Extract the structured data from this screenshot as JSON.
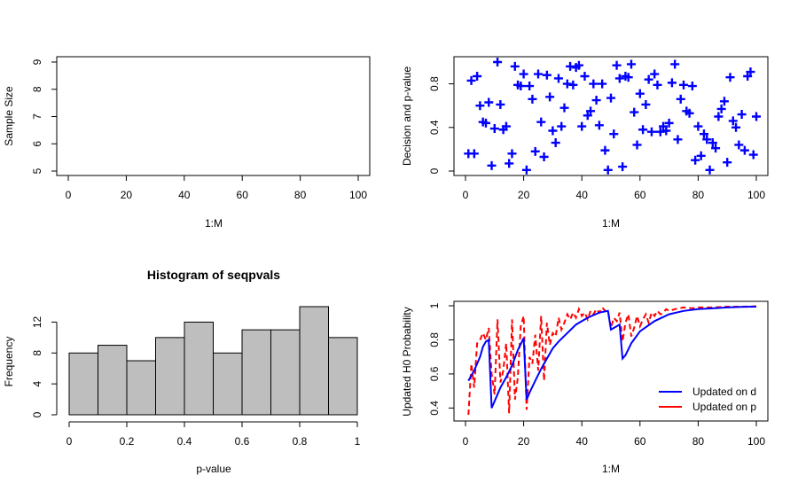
{
  "chart_data": [
    {
      "type": "scatter",
      "title": "",
      "xlabel": "1:M",
      "ylabel": "Sample Size",
      "xlim": [
        0,
        100
      ],
      "ylim": [
        5,
        9
      ],
      "xticks": [
        0,
        20,
        40,
        60,
        80,
        100
      ],
      "yticks": [
        5,
        6,
        7,
        8,
        9
      ],
      "points": []
    },
    {
      "type": "scatter",
      "title": "",
      "xlabel": "1:M",
      "ylabel": "Decision and p-value",
      "xlim": [
        0,
        100
      ],
      "ylim": [
        0,
        1
      ],
      "xticks": [
        0,
        20,
        40,
        60,
        80,
        100
      ],
      "yticks": [
        0.0,
        0.4,
        0.8
      ],
      "marker_color": "#0000ff",
      "x": [
        1,
        2,
        3,
        4,
        5,
        6,
        7,
        8,
        9,
        10,
        11,
        12,
        13,
        14,
        15,
        16,
        17,
        18,
        19,
        20,
        21,
        22,
        23,
        24,
        25,
        26,
        27,
        28,
        29,
        30,
        31,
        32,
        33,
        34,
        35,
        36,
        37,
        38,
        39,
        40,
        41,
        42,
        43,
        44,
        45,
        46,
        47,
        48,
        49,
        50,
        51,
        52,
        53,
        54,
        55,
        56,
        57,
        58,
        59,
        60,
        61,
        62,
        63,
        64,
        65,
        66,
        67,
        68,
        69,
        70,
        71,
        72,
        73,
        74,
        75,
        76,
        77,
        78,
        79,
        80,
        81,
        82,
        83,
        84,
        85,
        86,
        87,
        88,
        89,
        90,
        91,
        92,
        93,
        94,
        95,
        96,
        97,
        98,
        99,
        100
      ],
      "y": [
        0.16,
        0.83,
        0.16,
        0.87,
        0.6,
        0.45,
        0.44,
        0.63,
        0.05,
        0.39,
        1.0,
        0.61,
        0.38,
        0.41,
        0.07,
        0.16,
        0.96,
        0.79,
        0.78,
        0.89,
        0.01,
        0.78,
        0.66,
        0.18,
        0.89,
        0.45,
        0.13,
        0.88,
        0.68,
        0.37,
        0.26,
        0.85,
        0.41,
        0.58,
        0.8,
        0.96,
        0.79,
        0.95,
        0.97,
        0.41,
        0.87,
        0.51,
        0.55,
        0.8,
        0.65,
        0.42,
        0.8,
        0.19,
        0.01,
        0.67,
        0.34,
        0.97,
        0.85,
        0.04,
        0.87,
        0.86,
        0.98,
        0.54,
        0.24,
        0.71,
        0.38,
        0.61,
        0.84,
        0.36,
        0.89,
        0.79,
        0.36,
        0.41,
        0.37,
        0.44,
        0.81,
        0.98,
        0.29,
        0.66,
        0.79,
        0.55,
        0.53,
        0.78,
        0.1,
        0.41,
        0.14,
        0.34,
        0.29,
        0.01,
        0.26,
        0.21,
        0.5,
        0.57,
        0.64,
        0.08,
        0.86,
        0.46,
        0.4,
        0.24,
        0.52,
        0.19,
        0.87,
        0.91,
        0.15,
        0.5
      ]
    },
    {
      "type": "bar",
      "title": "Histogram of seqpvals",
      "xlabel": "p-value",
      "ylabel": "Frequency",
      "xlim": [
        0,
        1
      ],
      "ylim": [
        0,
        14
      ],
      "xticks": [
        0.0,
        0.2,
        0.4,
        0.6,
        0.8,
        1.0
      ],
      "yticks": [
        0,
        4,
        8,
        12
      ],
      "bin_edges": [
        0.0,
        0.1,
        0.2,
        0.3,
        0.4,
        0.5,
        0.6,
        0.7,
        0.8,
        0.9,
        1.0
      ],
      "values": [
        8,
        9,
        7,
        10,
        12,
        8,
        11,
        11,
        14,
        10
      ],
      "bar_color": "#bebebe"
    },
    {
      "type": "line",
      "title": "",
      "xlabel": "1:M",
      "ylabel": "Updated H0 Probability",
      "xlim": [
        0,
        100
      ],
      "ylim": [
        0.35,
        1.0
      ],
      "xticks": [
        0,
        20,
        40,
        60,
        80,
        100
      ],
      "yticks": [
        0.4,
        0.6,
        0.8,
        1.0
      ],
      "legend_position": "bottom-right",
      "series": [
        {
          "name": "Updated on d",
          "color": "#0000ff",
          "dash": "solid",
          "x": [
            1,
            2,
            3,
            4,
            5,
            6,
            7,
            8,
            9,
            10,
            12,
            14,
            16,
            18,
            20,
            21,
            22,
            24,
            26,
            28,
            30,
            32,
            35,
            38,
            42,
            46,
            49,
            50,
            52,
            53,
            54,
            55,
            57,
            60,
            65,
            70,
            75,
            80,
            85,
            90,
            95,
            100
          ],
          "y": [
            0.56,
            0.59,
            0.62,
            0.66,
            0.7,
            0.76,
            0.79,
            0.8,
            0.4,
            0.44,
            0.52,
            0.58,
            0.65,
            0.74,
            0.81,
            0.45,
            0.49,
            0.56,
            0.63,
            0.69,
            0.75,
            0.79,
            0.84,
            0.89,
            0.93,
            0.96,
            0.97,
            0.86,
            0.88,
            0.89,
            0.69,
            0.71,
            0.78,
            0.85,
            0.91,
            0.95,
            0.97,
            0.98,
            0.985,
            0.99,
            0.993,
            0.995
          ]
        },
        {
          "name": "Updated on p",
          "color": "#ff0000",
          "dash": "dashed",
          "x": [
            1,
            2,
            3,
            4,
            5,
            6,
            7,
            8,
            9,
            10,
            11,
            12,
            13,
            14,
            15,
            16,
            17,
            18,
            19,
            20,
            21,
            22,
            23,
            24,
            25,
            26,
            27,
            28,
            29,
            30,
            31,
            32,
            33,
            34,
            35,
            36,
            37,
            38,
            39,
            40,
            41,
            42,
            43,
            44,
            45,
            46,
            47,
            48,
            49,
            50,
            51,
            52,
            53,
            54,
            55,
            56,
            57,
            58,
            59,
            60,
            61,
            62,
            63,
            64,
            65,
            66,
            67,
            68,
            69,
            70,
            72,
            75,
            78,
            80,
            85,
            90,
            95,
            100
          ],
          "y": [
            0.36,
            0.66,
            0.52,
            0.78,
            0.8,
            0.84,
            0.8,
            0.87,
            0.6,
            0.48,
            0.92,
            0.55,
            0.62,
            0.78,
            0.37,
            0.92,
            0.45,
            0.58,
            0.88,
            0.94,
            0.39,
            0.7,
            0.66,
            0.83,
            0.62,
            0.94,
            0.56,
            0.9,
            0.77,
            0.84,
            0.82,
            0.93,
            0.86,
            0.9,
            0.95,
            0.92,
            0.96,
            0.93,
            0.98,
            0.94,
            0.96,
            0.92,
            0.97,
            0.95,
            0.98,
            0.96,
            0.99,
            0.97,
            0.97,
            0.87,
            0.93,
            0.91,
            0.96,
            0.79,
            0.9,
            0.95,
            0.82,
            0.87,
            0.94,
            0.88,
            0.92,
            0.95,
            0.9,
            0.96,
            0.94,
            0.97,
            0.95,
            0.96,
            0.98,
            0.97,
            0.98,
            0.99,
            0.985,
            0.99,
            0.99,
            0.995,
            0.995,
            0.997
          ]
        }
      ]
    }
  ]
}
